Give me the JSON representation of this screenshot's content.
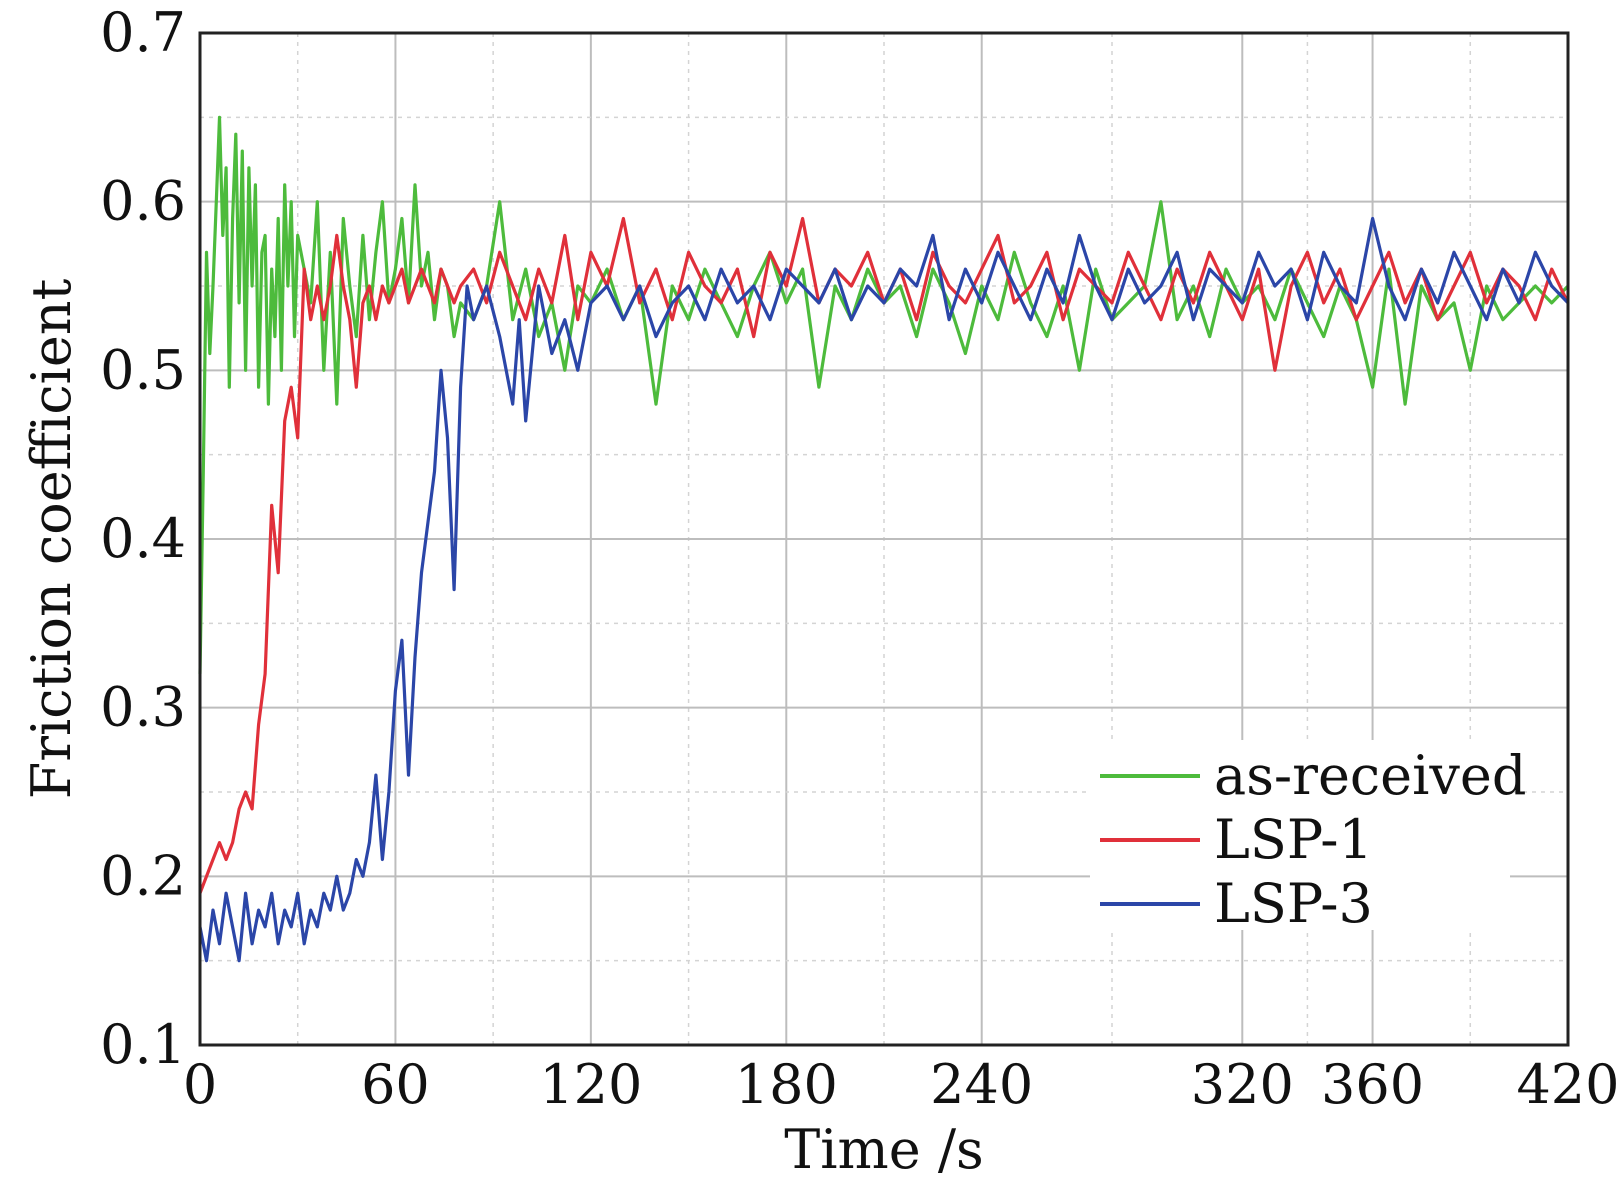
{
  "chart_data": {
    "type": "line",
    "title": "",
    "xlabel": "Time /s",
    "ylabel": "Friction coefficient",
    "xlim": [
      0,
      420
    ],
    "ylim": [
      0.1,
      0.7
    ],
    "xticks": [
      0,
      60,
      120,
      180,
      240,
      320,
      360,
      420
    ],
    "xtick_labels": [
      "0",
      "60",
      "120",
      "180",
      "240",
      "320",
      "360",
      "420"
    ],
    "yticks": [
      0.1,
      0.2,
      0.3,
      0.4,
      0.5,
      0.6,
      0.7
    ],
    "ytick_labels": [
      "0.1",
      "0.2",
      "0.3",
      "0.4",
      "0.5",
      "0.6",
      "0.7"
    ],
    "grid": true,
    "legend_position": "bottom-right",
    "series": [
      {
        "name": "as-received",
        "color": "#4dbb3c",
        "x": [
          0,
          1,
          2,
          3,
          4,
          5,
          6,
          7,
          8,
          9,
          10,
          11,
          12,
          13,
          14,
          15,
          16,
          17,
          18,
          19,
          20,
          21,
          22,
          23,
          24,
          25,
          26,
          27,
          28,
          29,
          30,
          32,
          34,
          36,
          38,
          40,
          42,
          44,
          46,
          48,
          50,
          52,
          54,
          56,
          58,
          60,
          62,
          64,
          66,
          68,
          70,
          72,
          74,
          76,
          78,
          80,
          84,
          88,
          92,
          96,
          100,
          104,
          108,
          112,
          116,
          120,
          125,
          130,
          135,
          140,
          145,
          150,
          155,
          160,
          165,
          170,
          175,
          180,
          185,
          190,
          195,
          200,
          205,
          210,
          215,
          220,
          225,
          230,
          235,
          240,
          245,
          250,
          255,
          260,
          265,
          270,
          275,
          280,
          285,
          290,
          295,
          300,
          305,
          310,
          315,
          320,
          325,
          330,
          335,
          340,
          345,
          350,
          355,
          360,
          365,
          370,
          375,
          380,
          385,
          390,
          395,
          400,
          405,
          410,
          415,
          420
        ],
        "y": [
          0.32,
          0.44,
          0.57,
          0.51,
          0.55,
          0.6,
          0.65,
          0.58,
          0.62,
          0.49,
          0.59,
          0.64,
          0.54,
          0.63,
          0.5,
          0.62,
          0.55,
          0.61,
          0.49,
          0.57,
          0.58,
          0.48,
          0.56,
          0.52,
          0.59,
          0.5,
          0.61,
          0.55,
          0.6,
          0.52,
          0.58,
          0.56,
          0.54,
          0.6,
          0.5,
          0.57,
          0.48,
          0.59,
          0.55,
          0.52,
          0.58,
          0.53,
          0.57,
          0.6,
          0.54,
          0.56,
          0.59,
          0.54,
          0.61,
          0.55,
          0.57,
          0.53,
          0.56,
          0.55,
          0.52,
          0.54,
          0.53,
          0.55,
          0.6,
          0.53,
          0.56,
          0.52,
          0.54,
          0.5,
          0.55,
          0.54,
          0.56,
          0.53,
          0.55,
          0.48,
          0.55,
          0.53,
          0.56,
          0.54,
          0.52,
          0.55,
          0.57,
          0.54,
          0.56,
          0.49,
          0.55,
          0.53,
          0.56,
          0.54,
          0.55,
          0.52,
          0.56,
          0.54,
          0.51,
          0.55,
          0.53,
          0.57,
          0.54,
          0.52,
          0.55,
          0.5,
          0.56,
          0.53,
          0.54,
          0.55,
          0.6,
          0.53,
          0.55,
          0.52,
          0.56,
          0.54,
          0.55,
          0.53,
          0.56,
          0.54,
          0.52,
          0.55,
          0.53,
          0.49,
          0.56,
          0.48,
          0.55,
          0.53,
          0.54,
          0.5,
          0.55,
          0.53,
          0.54,
          0.55,
          0.54,
          0.55
        ]
      },
      {
        "name": "LSP-1",
        "color": "#e0303a",
        "x": [
          0,
          2,
          4,
          6,
          8,
          10,
          12,
          14,
          16,
          18,
          20,
          22,
          24,
          26,
          28,
          30,
          32,
          34,
          36,
          38,
          40,
          42,
          44,
          46,
          48,
          50,
          52,
          54,
          56,
          58,
          60,
          62,
          64,
          66,
          68,
          70,
          72,
          74,
          76,
          78,
          80,
          84,
          88,
          92,
          96,
          100,
          104,
          108,
          112,
          116,
          120,
          125,
          130,
          135,
          140,
          145,
          150,
          155,
          160,
          165,
          170,
          175,
          180,
          185,
          190,
          195,
          200,
          205,
          210,
          215,
          220,
          225,
          230,
          235,
          240,
          245,
          250,
          255,
          260,
          265,
          270,
          275,
          280,
          285,
          290,
          295,
          300,
          305,
          310,
          315,
          320,
          325,
          330,
          335,
          340,
          345,
          350,
          355,
          360,
          365,
          370,
          375,
          380,
          385,
          390,
          395,
          400,
          405,
          410,
          415,
          420
        ],
        "y": [
          0.19,
          0.2,
          0.21,
          0.22,
          0.21,
          0.22,
          0.24,
          0.25,
          0.24,
          0.29,
          0.32,
          0.42,
          0.38,
          0.47,
          0.49,
          0.46,
          0.56,
          0.53,
          0.55,
          0.53,
          0.55,
          0.58,
          0.55,
          0.53,
          0.49,
          0.54,
          0.55,
          0.53,
          0.55,
          0.54,
          0.55,
          0.56,
          0.54,
          0.55,
          0.56,
          0.55,
          0.54,
          0.56,
          0.55,
          0.54,
          0.55,
          0.56,
          0.54,
          0.57,
          0.55,
          0.53,
          0.56,
          0.54,
          0.58,
          0.53,
          0.57,
          0.55,
          0.59,
          0.54,
          0.56,
          0.53,
          0.57,
          0.55,
          0.54,
          0.56,
          0.52,
          0.57,
          0.55,
          0.59,
          0.54,
          0.56,
          0.55,
          0.57,
          0.54,
          0.56,
          0.53,
          0.57,
          0.55,
          0.54,
          0.56,
          0.58,
          0.54,
          0.55,
          0.57,
          0.53,
          0.56,
          0.55,
          0.54,
          0.57,
          0.55,
          0.53,
          0.56,
          0.54,
          0.57,
          0.55,
          0.53,
          0.56,
          0.5,
          0.55,
          0.57,
          0.54,
          0.56,
          0.53,
          0.55,
          0.57,
          0.54,
          0.56,
          0.53,
          0.55,
          0.57,
          0.54,
          0.56,
          0.55,
          0.53,
          0.56,
          0.54
        ]
      },
      {
        "name": "LSP-3",
        "color": "#2b46a8",
        "x": [
          0,
          2,
          4,
          6,
          8,
          10,
          12,
          14,
          16,
          18,
          20,
          22,
          24,
          26,
          28,
          30,
          32,
          34,
          36,
          38,
          40,
          42,
          44,
          46,
          48,
          50,
          52,
          54,
          56,
          58,
          60,
          62,
          64,
          66,
          68,
          70,
          72,
          74,
          76,
          78,
          80,
          82,
          84,
          88,
          92,
          96,
          98,
          100,
          104,
          108,
          112,
          116,
          120,
          125,
          130,
          135,
          140,
          145,
          150,
          155,
          160,
          165,
          170,
          175,
          180,
          185,
          190,
          195,
          200,
          205,
          210,
          215,
          220,
          225,
          230,
          235,
          240,
          245,
          250,
          255,
          260,
          265,
          270,
          275,
          280,
          285,
          290,
          295,
          300,
          305,
          310,
          315,
          320,
          325,
          330,
          335,
          340,
          345,
          350,
          355,
          360,
          365,
          370,
          375,
          380,
          385,
          390,
          395,
          400,
          405,
          410,
          415,
          420
        ],
        "y": [
          0.17,
          0.15,
          0.18,
          0.16,
          0.19,
          0.17,
          0.15,
          0.19,
          0.16,
          0.18,
          0.17,
          0.19,
          0.16,
          0.18,
          0.17,
          0.19,
          0.16,
          0.18,
          0.17,
          0.19,
          0.18,
          0.2,
          0.18,
          0.19,
          0.21,
          0.2,
          0.22,
          0.26,
          0.21,
          0.25,
          0.31,
          0.34,
          0.26,
          0.33,
          0.38,
          0.41,
          0.44,
          0.5,
          0.46,
          0.37,
          0.49,
          0.55,
          0.53,
          0.55,
          0.52,
          0.48,
          0.53,
          0.47,
          0.55,
          0.51,
          0.53,
          0.5,
          0.54,
          0.55,
          0.53,
          0.55,
          0.52,
          0.54,
          0.55,
          0.53,
          0.56,
          0.54,
          0.55,
          0.53,
          0.56,
          0.55,
          0.54,
          0.56,
          0.53,
          0.55,
          0.54,
          0.56,
          0.55,
          0.58,
          0.53,
          0.56,
          0.54,
          0.57,
          0.55,
          0.53,
          0.56,
          0.54,
          0.58,
          0.55,
          0.53,
          0.56,
          0.54,
          0.55,
          0.57,
          0.53,
          0.56,
          0.55,
          0.54,
          0.57,
          0.55,
          0.56,
          0.53,
          0.57,
          0.55,
          0.54,
          0.59,
          0.55,
          0.53,
          0.56,
          0.54,
          0.57,
          0.55,
          0.53,
          0.56,
          0.54,
          0.57,
          0.55,
          0.54
        ]
      }
    ]
  }
}
